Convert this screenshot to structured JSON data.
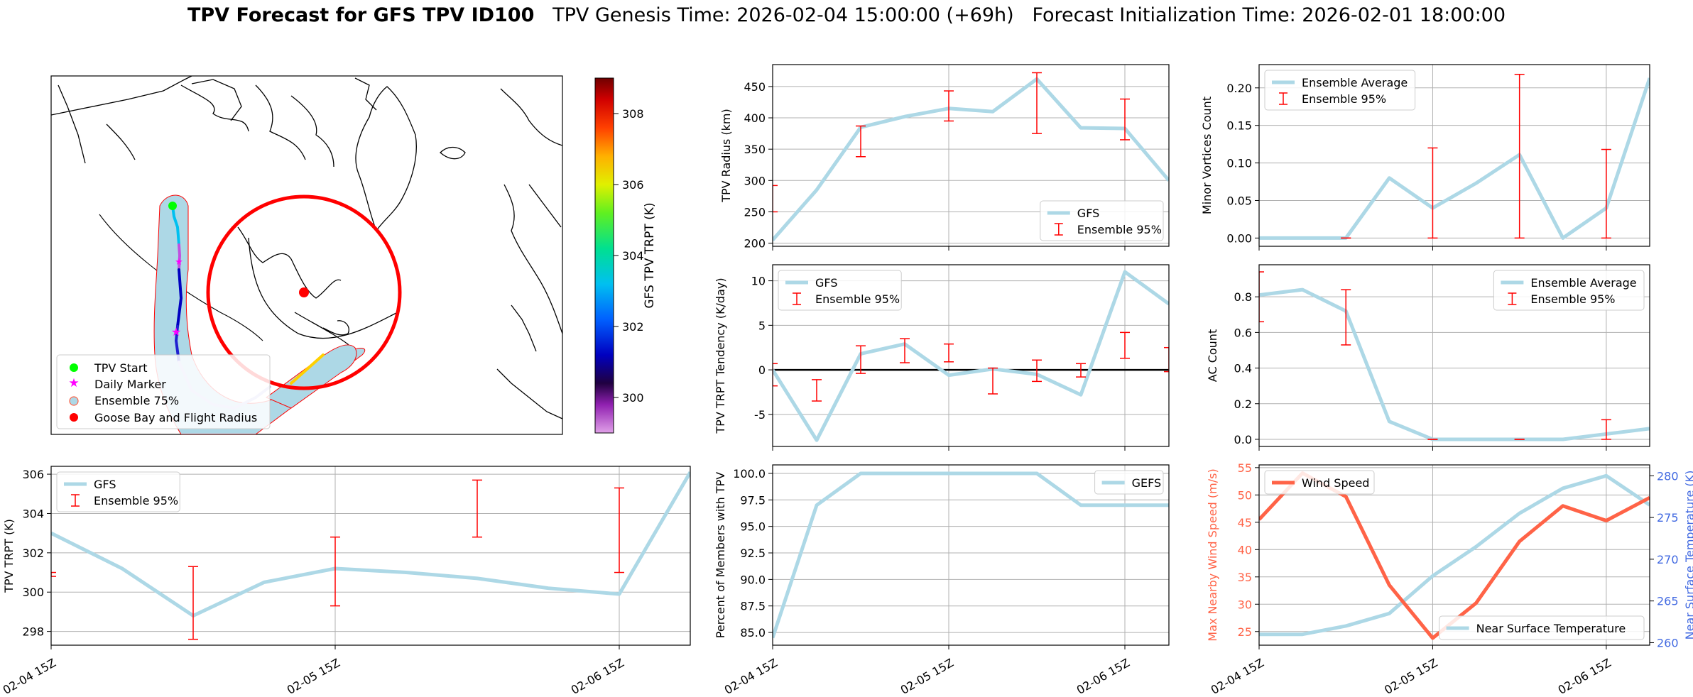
{
  "title": {
    "main": "TPV Forecast for GFS TPV ID100",
    "genesis": "TPV Genesis Time: 2026-02-04 15:00:00 (+69h)",
    "init": "Forecast Initialization Time: 2026-02-01 18:00:00"
  },
  "colors": {
    "gfs_line": "#add8e6",
    "error_bar": "#ff0000",
    "wind_line": "#ff6347",
    "temp_axis": "#4169e1",
    "grid": "#b0b0b0"
  },
  "map": {
    "colorbar_label": "GFS TPV TRPT (K)",
    "colorbar_ticks": [
      300,
      302,
      304,
      306,
      308
    ],
    "colorbar_range": [
      299,
      309
    ],
    "legend": [
      {
        "label": "TPV Start",
        "marker": "circle",
        "color": "#00ff00"
      },
      {
        "label": "Daily Marker",
        "marker": "star",
        "color": "#ff00ff"
      },
      {
        "label": "Ensemble 75%",
        "marker": "circle-outline",
        "color": "#add8e6"
      },
      {
        "label": "Goose Bay and Flight Radius",
        "marker": "circle",
        "color": "#ff0000"
      }
    ]
  },
  "chart_data": [
    {
      "id": "trpt",
      "type": "line",
      "x": [
        "02-04 15Z",
        "02-04 21Z",
        "02-05 03Z",
        "02-05 09Z",
        "02-05 15Z",
        "02-05 21Z",
        "02-06 03Z",
        "02-06 09Z",
        "02-06 15Z",
        "02-06 21Z"
      ],
      "xticks": [
        "02-04 15Z",
        "02-05 15Z",
        "02-06 15Z"
      ],
      "ylabel": "TPV TRPT (K)",
      "ylim": [
        297.3,
        306.4
      ],
      "yticks": [
        298,
        300,
        302,
        304,
        306
      ],
      "legend_loc": "upper-left",
      "series": [
        {
          "name": "GFS",
          "values": [
            303.0,
            301.2,
            298.8,
            300.5,
            301.2,
            301.0,
            300.7,
            300.2,
            299.9,
            306.1
          ]
        }
      ],
      "errorbars": {
        "name": "Ensemble 95%",
        "idx": [
          0,
          2,
          4,
          6,
          8
        ],
        "low": [
          300.8,
          297.6,
          299.3,
          302.8,
          301.0
        ],
        "high": [
          301.0,
          301.3,
          302.8,
          305.7,
          305.3
        ]
      }
    },
    {
      "id": "radius",
      "type": "line",
      "x": [
        "02-04 15Z",
        "02-04 21Z",
        "02-05 03Z",
        "02-05 09Z",
        "02-05 15Z",
        "02-05 21Z",
        "02-06 03Z",
        "02-06 09Z",
        "02-06 15Z",
        "02-06 21Z"
      ],
      "ylabel": "TPV Radius (km)",
      "ylim": [
        195,
        485
      ],
      "yticks": [
        200,
        250,
        300,
        350,
        400,
        450
      ],
      "legend_loc": "lower-right",
      "series": [
        {
          "name": "GFS",
          "values": [
            205,
            285,
            385,
            402,
            415,
            410,
            462,
            384,
            383,
            300
          ]
        }
      ],
      "errorbars": {
        "name": "Ensemble 95%",
        "idx": [
          0,
          2,
          4,
          6,
          8
        ],
        "low": [
          250,
          338,
          395,
          375,
          365
        ],
        "high": [
          292,
          387,
          443,
          472,
          430
        ]
      }
    },
    {
      "id": "tendency",
      "type": "line",
      "x": [
        "02-04 15Z",
        "02-04 21Z",
        "02-05 03Z",
        "02-05 09Z",
        "02-05 15Z",
        "02-05 21Z",
        "02-06 03Z",
        "02-06 09Z",
        "02-06 15Z",
        "02-06 21Z"
      ],
      "ylabel": "TPV TRPT Tendency (K/day)",
      "ylim": [
        -8.6,
        11.8
      ],
      "yticks": [
        -5,
        0,
        5,
        10
      ],
      "zero_line": true,
      "legend_loc": "upper-left",
      "series": [
        {
          "name": "GFS",
          "values": [
            0.0,
            -7.9,
            1.8,
            2.9,
            -0.6,
            0.1,
            -0.5,
            -2.8,
            11.0,
            7.4
          ]
        }
      ],
      "errorbars": {
        "name": "Ensemble 95%",
        "idx": [
          0,
          1,
          2,
          3,
          4,
          5,
          6,
          7,
          8,
          9
        ],
        "low": [
          -1.8,
          -3.5,
          -0.4,
          0.8,
          0.9,
          -2.7,
          -1.3,
          -0.8,
          1.3,
          -0.2
        ],
        "high": [
          0.7,
          -1.1,
          2.7,
          3.5,
          2.9,
          0.2,
          1.1,
          0.7,
          4.2,
          2.5
        ]
      }
    },
    {
      "id": "members",
      "type": "line",
      "x": [
        "02-04 15Z",
        "02-04 21Z",
        "02-05 03Z",
        "02-05 09Z",
        "02-05 15Z",
        "02-05 21Z",
        "02-06 03Z",
        "02-06 09Z",
        "02-06 15Z",
        "02-06 21Z"
      ],
      "ylabel": "Percent of Members with TPV",
      "ylim": [
        83.8,
        100.8
      ],
      "yticks": [
        85.0,
        87.5,
        90.0,
        92.5,
        95.0,
        97.5,
        100.0
      ],
      "legend_loc": "upper-right",
      "series": [
        {
          "name": "GEFS",
          "values": [
            84.5,
            97.0,
            100.0,
            100.0,
            100.0,
            100.0,
            100.0,
            97.0,
            97.0,
            97.0
          ]
        }
      ]
    },
    {
      "id": "minor",
      "type": "line",
      "x": [
        "02-04 15Z",
        "02-04 21Z",
        "02-05 03Z",
        "02-05 09Z",
        "02-05 15Z",
        "02-05 21Z",
        "02-06 03Z",
        "02-06 09Z",
        "02-06 15Z",
        "02-06 21Z"
      ],
      "ylabel": "Minor Vortices Count",
      "ylim": [
        -0.011,
        0.231
      ],
      "yticks": [
        0.0,
        0.05,
        0.1,
        0.15,
        0.2
      ],
      "legend_loc": "upper-left",
      "series": [
        {
          "name": "Ensemble Average",
          "values": [
            0.0,
            0.0,
            0.0,
            0.08,
            0.04,
            0.073,
            0.111,
            0.0,
            0.04,
            0.213
          ]
        }
      ],
      "errorbars": {
        "name": "Ensemble 95%",
        "idx": [
          2,
          4,
          6,
          8
        ],
        "low": [
          0.0,
          0.0,
          0.0,
          0.0
        ],
        "high": [
          0.0,
          0.12,
          0.218,
          0.118
        ]
      }
    },
    {
      "id": "ac",
      "type": "line",
      "x": [
        "02-04 15Z",
        "02-04 21Z",
        "02-05 03Z",
        "02-05 09Z",
        "02-05 15Z",
        "02-05 21Z",
        "02-06 03Z",
        "02-06 09Z",
        "02-06 15Z",
        "02-06 21Z"
      ],
      "ylabel": "AC Count",
      "ylim": [
        -0.04,
        0.98
      ],
      "yticks": [
        0.0,
        0.2,
        0.4,
        0.6,
        0.8
      ],
      "legend_loc": "upper-right",
      "series": [
        {
          "name": "Ensemble Average",
          "values": [
            0.81,
            0.84,
            0.72,
            0.1,
            0.0,
            0.0,
            0.0,
            0.0,
            0.03,
            0.06
          ]
        }
      ],
      "errorbars": {
        "name": "Ensemble 95%",
        "idx": [
          0,
          2,
          4,
          6,
          8
        ],
        "low": [
          0.66,
          0.53,
          0.0,
          0.0,
          0.0
        ],
        "high": [
          0.94,
          0.84,
          0.0,
          0.0,
          0.11
        ]
      }
    },
    {
      "id": "wind",
      "type": "line",
      "x": [
        "02-04 15Z",
        "02-04 21Z",
        "02-05 03Z",
        "02-05 09Z",
        "02-05 15Z",
        "02-05 21Z",
        "02-06 03Z",
        "02-06 09Z",
        "02-06 15Z",
        "02-06 21Z"
      ],
      "ylabel": "Max Nearby Wind Speed (m/s)",
      "ylim": [
        22.5,
        55.5
      ],
      "yticks": [
        25,
        30,
        35,
        40,
        45,
        50,
        55
      ],
      "legend_loc": "upper-left",
      "series": [
        {
          "name": "Wind Speed",
          "values": [
            45.5,
            54.0,
            49.7,
            33.5,
            23.8,
            30.2,
            41.5,
            48.0,
            45.3,
            49.5
          ]
        }
      ],
      "y2label": "Near Surface Temperature (K)",
      "y2lim": [
        259.7,
        281.3
      ],
      "y2ticks": [
        260,
        265,
        270,
        275,
        280
      ],
      "series2": [
        {
          "name": "Near Surface Temperature",
          "values": [
            261.0,
            261.0,
            262.0,
            263.5,
            268.0,
            271.5,
            275.5,
            278.5,
            280.0,
            276.5
          ]
        }
      ],
      "legend2_loc": "lower-right"
    }
  ]
}
